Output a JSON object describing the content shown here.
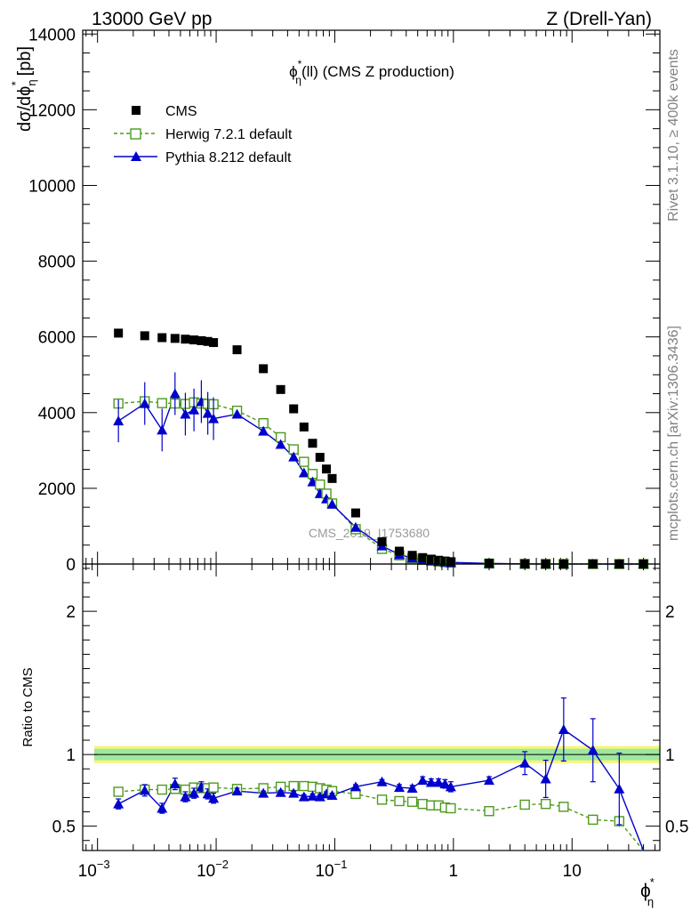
{
  "header": {
    "energy": "13000 GeV pp",
    "process": "Z (Drell-Yan)"
  },
  "plot_title": {
    "main": "ϕ",
    "sup": "*",
    "sub": "η",
    "rest": "(ll) (CMS Z production)"
  },
  "side_text": {
    "rivet": "Rivet 3.1.10, ≥ 400k events",
    "mcplots": "mcplots.cern.ch [arXiv:1306.3436]"
  },
  "watermark": "CMS_2019_I1753680",
  "ylabel_top": {
    "text": "dσ/dϕ",
    "sub": "η",
    "sup": "*",
    "unit": "[pb]"
  },
  "ylabel_bottom": "Ratio to CMS",
  "xlabel": {
    "text": "ϕ",
    "sub": "η",
    "sup": "*"
  },
  "legend": [
    {
      "label": "CMS",
      "marker": "square-filled",
      "color": "#000000"
    },
    {
      "label": "Herwig 7.2.1 default",
      "marker": "square-open",
      "color": "#4d9a1f",
      "dashed": true
    },
    {
      "label": "Pythia 8.212 default",
      "marker": "triangle-filled",
      "color": "#0000cc"
    }
  ],
  "chart_data": {
    "type": "scatter",
    "xscale": "log",
    "xlim": [
      0.00075,
      55
    ],
    "x_ticks": [
      {
        "value": 0.001,
        "base": "10",
        "exp": "−3"
      },
      {
        "value": 0.01,
        "base": "10",
        "exp": "−2"
      },
      {
        "value": 0.1,
        "base": "10",
        "exp": "−1"
      },
      {
        "value": 1,
        "label": "1"
      },
      {
        "value": 10,
        "label": "10"
      }
    ],
    "top": {
      "ylim": [
        0,
        14100
      ],
      "y_ticks": [
        0,
        2000,
        4000,
        6000,
        8000,
        10000,
        12000,
        14000
      ],
      "y_tick_labels": [
        "0",
        "2000",
        "4000",
        "6000",
        "8000",
        "10000",
        "12000",
        "14000"
      ]
    },
    "bottom": {
      "ylim": [
        0.33,
        2.33
      ],
      "y_ticks": [
        0.5,
        1,
        2
      ],
      "y_tick_labels": [
        "0.5",
        "1",
        "2"
      ],
      "band_inner": [
        0.96,
        1.04
      ],
      "band_outer": [
        0.94,
        1.06
      ]
    },
    "x": [
      0.0015,
      0.0025,
      0.0035,
      0.0045,
      0.0055,
      0.0065,
      0.0075,
      0.0085,
      0.0095,
      0.015,
      0.025,
      0.035,
      0.045,
      0.055,
      0.065,
      0.075,
      0.085,
      0.095,
      0.15,
      0.25,
      0.35,
      0.45,
      0.55,
      0.65,
      0.75,
      0.85,
      0.95,
      2,
      4,
      6,
      8.5,
      15,
      25,
      40
    ],
    "series": [
      {
        "name": "CMS",
        "values": [
          6100,
          6030,
          5980,
          5960,
          5940,
          5920,
          5900,
          5880,
          5850,
          5660,
          5160,
          4610,
          4100,
          3620,
          3190,
          2820,
          2510,
          2260,
          1350,
          590,
          340,
          230,
          170,
          130,
          100,
          80,
          62,
          20,
          6,
          3,
          1.5,
          0.5,
          0.2,
          0.1
        ]
      },
      {
        "name": "Herwig 7.2.1 default",
        "values": [
          4240,
          4300,
          4250,
          4240,
          4230,
          4270,
          4240,
          4230,
          4220,
          4050,
          3720,
          3350,
          3030,
          2700,
          2380,
          2100,
          1860,
          1600,
          920,
          400,
          230,
          150,
          110,
          85,
          65,
          50,
          38,
          12,
          4,
          2,
          1,
          0.3,
          0.1,
          0.05
        ],
        "ratio": [
          0.74,
          0.755,
          0.755,
          0.76,
          0.755,
          0.77,
          0.765,
          0.765,
          0.77,
          0.76,
          0.765,
          0.775,
          0.78,
          0.78,
          0.775,
          0.765,
          0.755,
          0.745,
          0.725,
          0.685,
          0.675,
          0.67,
          0.655,
          0.645,
          0.645,
          0.63,
          0.625,
          0.605,
          0.65,
          0.655,
          0.635,
          0.545,
          0.535,
          0.26
        ],
        "ratio_err": [
          0.012,
          0.012,
          0.012,
          0.012,
          0.012,
          0.012,
          0.012,
          0.012,
          0.012,
          0.01,
          0.01,
          0.01,
          0.01,
          0.01,
          0.01,
          0.01,
          0.01,
          0.01,
          0.01,
          0.01,
          0.01,
          0.01,
          0.012,
          0.012,
          0.012,
          0.012,
          0.012,
          0.014,
          0.018,
          0.02,
          0.03,
          0.035,
          0.04,
          0.06
        ]
      },
      {
        "name": "Pythia 8.212 default",
        "values": [
          3780,
          4240,
          3540,
          4500,
          3960,
          4070,
          4290,
          3980,
          3840,
          3960,
          3510,
          3160,
          2830,
          2410,
          2170,
          1860,
          1720,
          1580,
          970,
          480,
          250,
          160,
          115,
          90,
          70,
          55,
          42,
          16,
          5,
          2.5,
          1.3,
          0.4,
          0.15,
          0.05
        ],
        "ratio": [
          0.655,
          0.75,
          0.625,
          0.795,
          0.705,
          0.73,
          0.775,
          0.725,
          0.695,
          0.745,
          0.73,
          0.735,
          0.73,
          0.705,
          0.71,
          0.705,
          0.725,
          0.715,
          0.775,
          0.81,
          0.77,
          0.765,
          0.82,
          0.805,
          0.805,
          0.795,
          0.775,
          0.82,
          0.94,
          0.83,
          1.175,
          1.03,
          0.76,
          0.23
        ],
        "ratio_err": [
          0.035,
          0.04,
          0.035,
          0.04,
          0.035,
          0.035,
          0.035,
          0.035,
          0.035,
          0.02,
          0.015,
          0.015,
          0.015,
          0.015,
          0.015,
          0.015,
          0.015,
          0.015,
          0.015,
          0.015,
          0.02,
          0.02,
          0.025,
          0.025,
          0.025,
          0.03,
          0.035,
          0.025,
          0.08,
          0.13,
          0.22,
          0.22,
          0.25,
          0.3
        ]
      }
    ]
  }
}
